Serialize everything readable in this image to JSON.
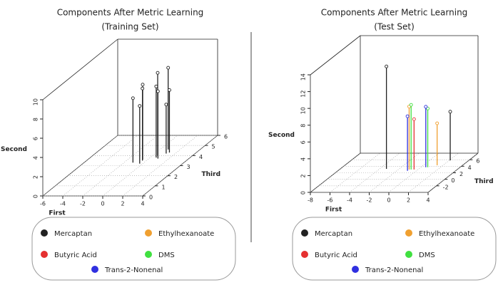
{
  "chart_data": [
    {
      "type": "scatter3d",
      "title": "Components After  Metric Learning",
      "subtitle": "(Training Set)",
      "xlabel": "First",
      "ylabel": "Third",
      "zlabel": "Second",
      "xlim": [
        -6,
        4
      ],
      "xticks": [
        -6,
        -4,
        -2,
        0,
        2,
        4
      ],
      "ylim": [
        0,
        6
      ],
      "yticks": [
        0,
        1,
        2,
        3,
        4,
        5,
        6
      ],
      "zlim": [
        0,
        10
      ],
      "zticks": [
        0,
        2,
        4,
        6,
        8,
        10
      ],
      "series": [
        {
          "name": "Mercaptan",
          "color": "#222222",
          "x": [
            -1.1,
            -0.5,
            -0.4,
            -0.3,
            0.5,
            0.6,
            0.9,
            0.8,
            1.3,
            1.1
          ],
          "y": [
            3.3,
            3.6,
            3.5,
            3.2,
            4.0,
            3.8,
            3.7,
            4.6,
            4.3,
            4.2
          ],
          "z": [
            6.7,
            7.8,
            7.5,
            6.0,
            8.6,
            7.4,
            7.0,
            8.5,
            6.5,
            5.1
          ]
        },
        {
          "name": "Ethylhexanoate",
          "color": "#f0a030",
          "x": [],
          "y": [],
          "z": []
        },
        {
          "name": "Butyric Acid",
          "color": "#e53030",
          "x": [],
          "y": [],
          "z": []
        },
        {
          "name": "DMS",
          "color": "#40e040",
          "x": [],
          "y": [],
          "z": []
        },
        {
          "name": "Trans-2-Nonenal",
          "color": "#3030e0",
          "x": [],
          "y": [],
          "z": []
        }
      ]
    },
    {
      "type": "scatter3d",
      "title": "Components After  Metric Learning",
      "subtitle": "(Test Set)",
      "xlabel": "First",
      "ylabel": "Third",
      "zlabel": "Second",
      "xlim": [
        -8,
        4
      ],
      "xticks": [
        -8,
        -6,
        -4,
        -2,
        0,
        2,
        4
      ],
      "ylim": [
        -4,
        8
      ],
      "yticks": [
        -2,
        0,
        2,
        4,
        6
      ],
      "zlim": [
        0,
        14
      ],
      "zticks": [
        0,
        2,
        4,
        6,
        8,
        10,
        12,
        14
      ],
      "series": [
        {
          "name": "Mercaptan",
          "color": "#222222",
          "x": [
            -3.3,
            2.1
          ],
          "y": [
            3.2,
            5.8
          ],
          "z": [
            12.2,
            5.8
          ]
        },
        {
          "name": "Ethylhexanoate",
          "color": "#f0a030",
          "x": [
            -0.9,
            1.4
          ],
          "y": [
            3.0,
            4.3
          ],
          "z": [
            7.5,
            5.0
          ]
        },
        {
          "name": "Butyric Acid",
          "color": "#e53030",
          "x": [
            -0.4
          ],
          "y": [
            3.0
          ],
          "z": [
            6.0
          ]
        },
        {
          "name": "DMS",
          "color": "#40e040",
          "x": [
            -0.7,
            0.7
          ],
          "y": [
            3.0,
            3.7
          ],
          "z": [
            7.7,
            7.0
          ]
        },
        {
          "name": "Trans-2-Nonenal",
          "color": "#3030e0",
          "x": [
            -0.9,
            0.5
          ],
          "y": [
            2.6,
            3.7
          ],
          "z": [
            6.5,
            7.2
          ]
        }
      ]
    }
  ]
}
